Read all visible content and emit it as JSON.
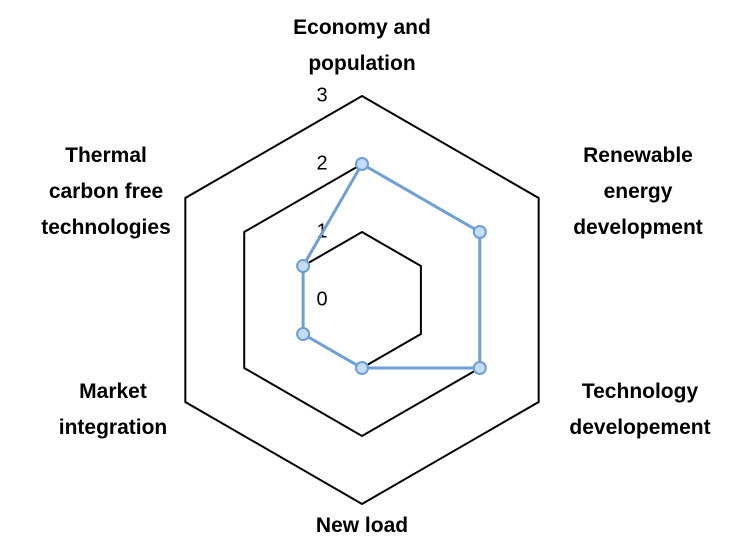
{
  "chart_data": {
    "type": "radar",
    "categories": [
      "Economy and population",
      "Renewable energy development",
      "Technology developement",
      "New load",
      "Market integration",
      "Thermal carbon free technologies"
    ],
    "series": [
      {
        "color": "#6d9fd8",
        "values": [
          2,
          2,
          2,
          1,
          1,
          1
        ]
      }
    ],
    "ylim": [
      0,
      3
    ],
    "yticks": [
      0,
      1,
      2,
      3
    ],
    "grid": true
  }
}
